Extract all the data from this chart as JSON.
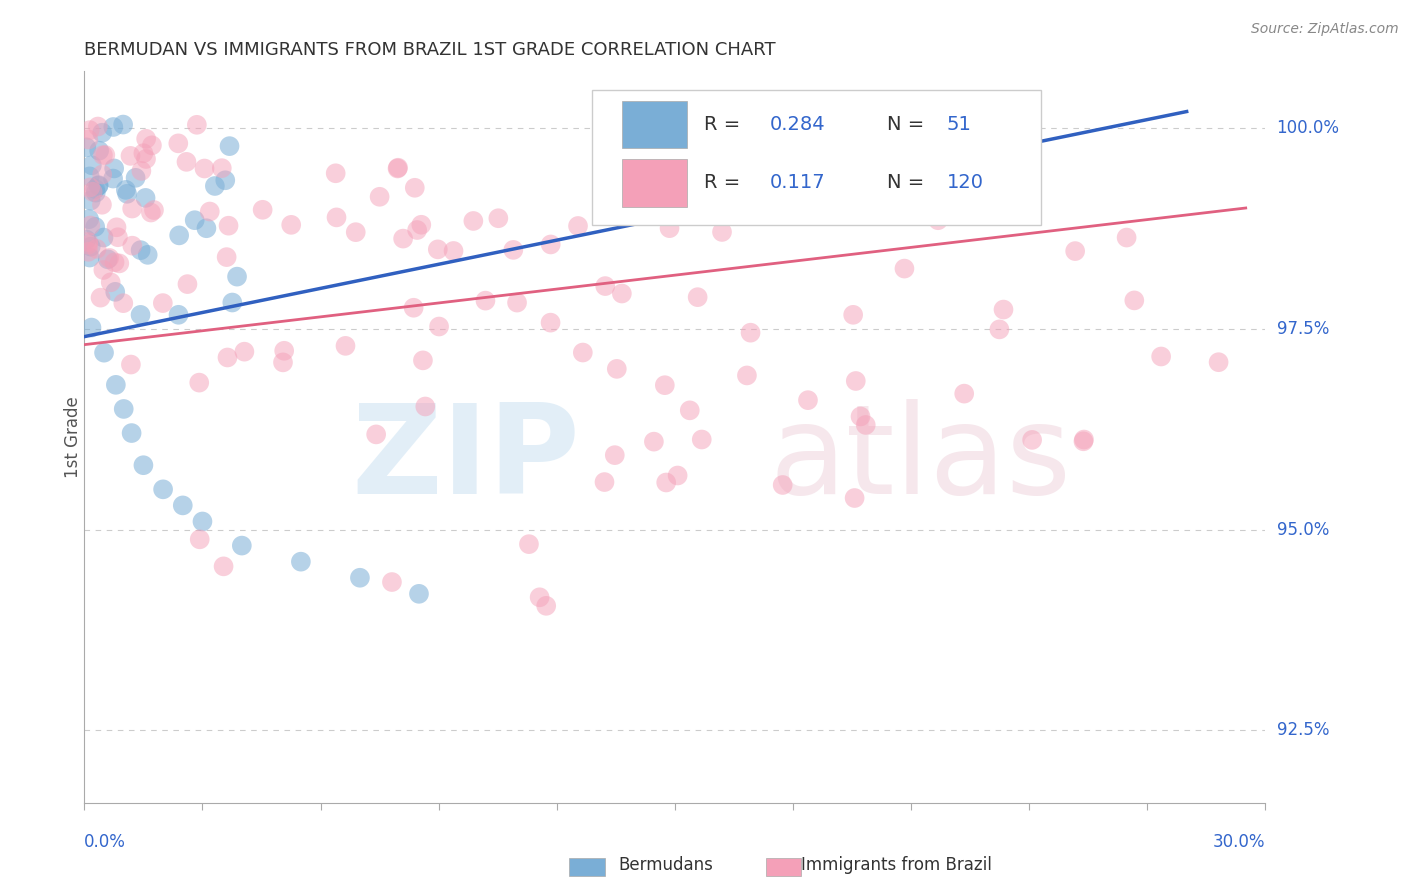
{
  "title": "BERMUDAN VS IMMIGRANTS FROM BRAZIL 1ST GRADE CORRELATION CHART",
  "source": "Source: ZipAtlas.com",
  "ylabel": "1st Grade",
  "xmin": 0.0,
  "xmax": 0.3,
  "ymin": 0.916,
  "ymax": 1.007,
  "yticks": [
    0.925,
    0.95,
    0.975,
    1.0
  ],
  "ytick_labels": [
    "92.5%",
    "95.0%",
    "97.5%",
    "100.0%"
  ],
  "bermudans_R": 0.284,
  "bermudans_N": 51,
  "brazil_R": 0.117,
  "brazil_N": 120,
  "blue_color": "#7aaed6",
  "pink_color": "#f4a0b8",
  "blue_line_color": "#3060c0",
  "pink_line_color": "#e06080",
  "background_color": "#ffffff",
  "grid_color": "#cccccc",
  "title_color": "#333333",
  "axis_label_color": "#3366cc",
  "legend_text_color": "#333333",
  "legend_num_color": "#3366cc",
  "blue_trend_x0": 0.0,
  "blue_trend_y0": 0.974,
  "blue_trend_x1": 0.28,
  "blue_trend_y1": 1.002,
  "pink_trend_x0": 0.0,
  "pink_trend_y0": 0.973,
  "pink_trend_x1": 0.295,
  "pink_trend_y1": 0.99
}
